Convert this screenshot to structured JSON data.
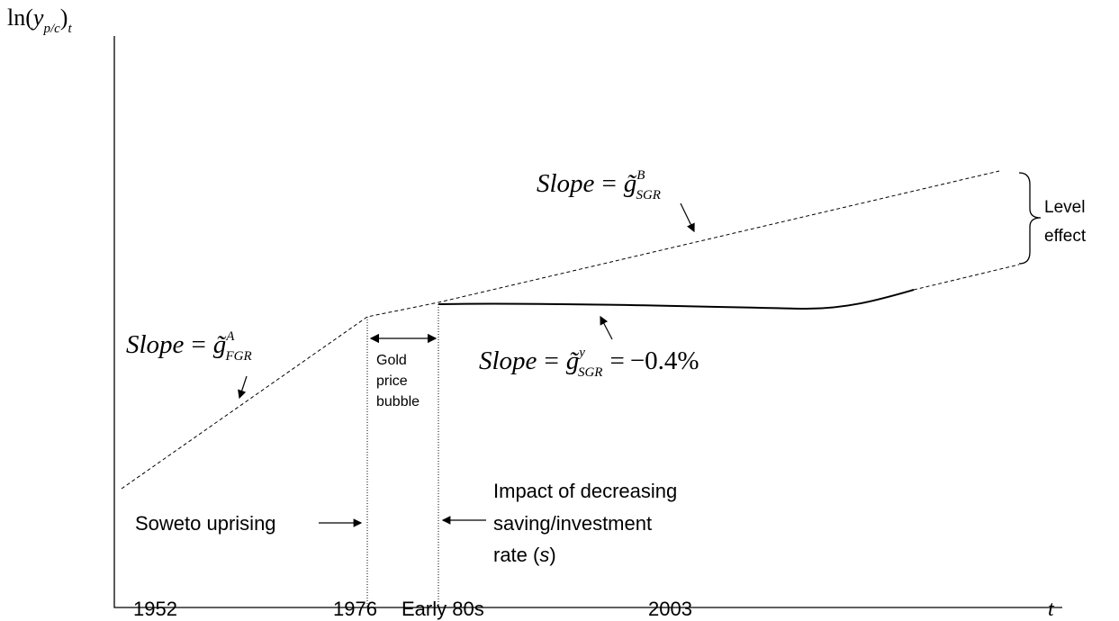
{
  "y_axis": {
    "prefix": "ln(",
    "var": "y",
    "sub": "p/c",
    "close": ")",
    "sub2": "t"
  },
  "x_axis": {
    "label": "t",
    "ticks": [
      "1952",
      "1976",
      "Early 80s",
      "2003"
    ]
  },
  "annotations": {
    "slope_fgr": {
      "word": "Slope",
      "eq": "=",
      "g": "g̃",
      "sup": "A",
      "sub": "FGR"
    },
    "slope_sgr_b": {
      "word": "Slope",
      "eq": "=",
      "g": "g̃",
      "sup": "B",
      "sub": "SGR"
    },
    "slope_sgr_y": {
      "word": "Slope",
      "eq": "=",
      "g": "g̃",
      "sup": "y",
      "sub": "SGR",
      "eq2": "=",
      "value": "−0.4%"
    },
    "gold": [
      "Gold",
      "price",
      "bubble"
    ],
    "level": [
      "Level",
      "effect"
    ],
    "soweto": "Soweto uprising",
    "impact": [
      "Impact of decreasing",
      "saving/investment",
      "rate (",
      "s",
      ")"
    ]
  }
}
